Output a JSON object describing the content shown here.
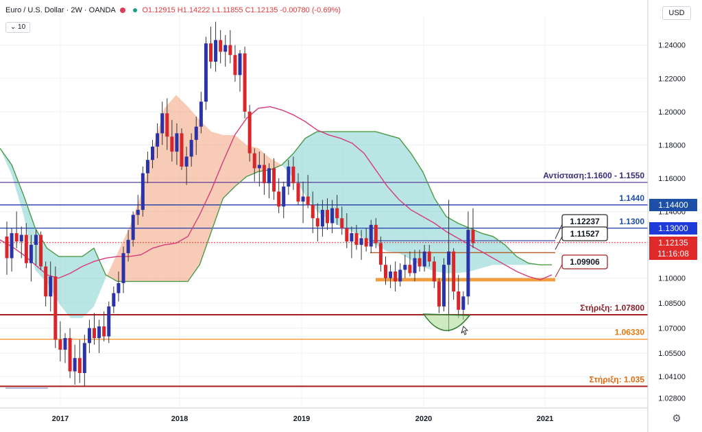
{
  "header": {
    "symbol": "Euro / U.S. Dollar · 2W · OANDA",
    "ohlc": "O1.12915  H1.14222  L1.11855  C1.12135  -0.00780 (-0.69%)",
    "interval_box": "10",
    "currency": "USD",
    "settings_icon": "gear-icon"
  },
  "colors": {
    "up": "#2a33a8",
    "down": "#d8262b",
    "cloud_bull": "#7fcfd0",
    "cloud_bear": "#f0a07a",
    "span_a": "#4a9a45",
    "ma": "#d63a7a",
    "resistance": "#5b3e9a",
    "blue_level": "#1e3aa8",
    "support_red": "#a81e1e",
    "support_orange": "#f08c1e",
    "level_1_0990": "#f08c1e"
  },
  "price_tags": [
    {
      "label": "1.14400",
      "value": 1.144,
      "bg": "#1e4fa8"
    },
    {
      "label": "1.13000",
      "value": 1.13,
      "bg": "#1e3ad8"
    },
    {
      "label": "1.12135",
      "value": 1.12135,
      "bg": "#e02a2a"
    },
    {
      "label": "11:16:08",
      "value": 1.1145,
      "bg": "#e02a2a"
    }
  ],
  "chart_data": {
    "type": "candlestick",
    "y_axis": {
      "ticks": [
        "1.24000",
        "1.22000",
        "1.20000",
        "1.18000",
        "1.16000",
        "1.14000",
        "1.12000",
        "1.10000",
        "1.08500",
        "1.07000",
        "1.05500",
        "1.04100",
        "1.02800"
      ],
      "range": [
        1.022,
        1.258
      ]
    },
    "x_axis": {
      "ticks": [
        "2017",
        "2018",
        "2019",
        "2020",
        "2021"
      ]
    },
    "levels": [
      {
        "label": "Αντίσταση:1.1600 - 1.1550",
        "value": 1.1575,
        "color": "#5b3e9a"
      },
      {
        "label": "1.1440",
        "value": 1.144,
        "color": "#1e4fa8"
      },
      {
        "label": "1.1300",
        "value": 1.13,
        "color": "#1e3aa8"
      },
      {
        "label": "Στήριξη: 1.07800",
        "value": 1.078,
        "color": "#a81e1e"
      },
      {
        "label": "1.06330",
        "value": 1.0633,
        "color": "#f08c1e"
      },
      {
        "label": "Στήριξη: 1.035",
        "value": 1.035,
        "color": "#a81e1e"
      }
    ],
    "callouts": [
      {
        "label": "1.12237",
        "value": 1.12237
      },
      {
        "label": "1.11527",
        "value": 1.11527
      },
      {
        "label": "1.09906",
        "value": 1.09906
      }
    ],
    "ohlc": [
      [
        1.125,
        1.134,
        1.102,
        1.112
      ],
      [
        1.112,
        1.13,
        1.104,
        1.127
      ],
      [
        1.127,
        1.14,
        1.118,
        1.122
      ],
      [
        1.122,
        1.131,
        1.112,
        1.126
      ],
      [
        1.126,
        1.133,
        1.106,
        1.109
      ],
      [
        1.109,
        1.126,
        1.098,
        1.12
      ],
      [
        1.12,
        1.129,
        1.108,
        1.126
      ],
      [
        1.126,
        1.128,
        1.105,
        1.107
      ],
      [
        1.107,
        1.11,
        1.083,
        1.089
      ],
      [
        1.089,
        1.11,
        1.08,
        1.101
      ],
      [
        1.101,
        1.107,
        1.058,
        1.063
      ],
      [
        1.063,
        1.074,
        1.05,
        1.057
      ],
      [
        1.057,
        1.067,
        1.049,
        1.064
      ],
      [
        1.064,
        1.07,
        1.04,
        1.044
      ],
      [
        1.044,
        1.06,
        1.036,
        1.052
      ],
      [
        1.052,
        1.063,
        1.037,
        1.043
      ],
      [
        1.043,
        1.066,
        1.035,
        1.061
      ],
      [
        1.061,
        1.075,
        1.055,
        1.07
      ],
      [
        1.07,
        1.079,
        1.06,
        1.064
      ],
      [
        1.064,
        1.075,
        1.055,
        1.071
      ],
      [
        1.071,
        1.08,
        1.062,
        1.065
      ],
      [
        1.065,
        1.086,
        1.061,
        1.083
      ],
      [
        1.083,
        1.095,
        1.079,
        1.091
      ],
      [
        1.091,
        1.104,
        1.086,
        1.097
      ],
      [
        1.097,
        1.119,
        1.091,
        1.115
      ],
      [
        1.115,
        1.129,
        1.11,
        1.123
      ],
      [
        1.123,
        1.14,
        1.119,
        1.138
      ],
      [
        1.138,
        1.15,
        1.132,
        1.141
      ],
      [
        1.141,
        1.167,
        1.137,
        1.163
      ],
      [
        1.163,
        1.176,
        1.157,
        1.171
      ],
      [
        1.171,
        1.183,
        1.166,
        1.179
      ],
      [
        1.179,
        1.193,
        1.172,
        1.187
      ],
      [
        1.187,
        1.206,
        1.18,
        1.199
      ],
      [
        1.199,
        1.208,
        1.177,
        1.185
      ],
      [
        1.185,
        1.195,
        1.17,
        1.176
      ],
      [
        1.176,
        1.193,
        1.168,
        1.187
      ],
      [
        1.187,
        1.19,
        1.165,
        1.167
      ],
      [
        1.167,
        1.179,
        1.156,
        1.173
      ],
      [
        1.173,
        1.187,
        1.167,
        1.183
      ],
      [
        1.183,
        1.197,
        1.174,
        1.191
      ],
      [
        1.191,
        1.212,
        1.187,
        1.206
      ],
      [
        1.206,
        1.245,
        1.201,
        1.241
      ],
      [
        1.241,
        1.251,
        1.226,
        1.23
      ],
      [
        1.23,
        1.254,
        1.224,
        1.243
      ],
      [
        1.243,
        1.249,
        1.229,
        1.236
      ],
      [
        1.236,
        1.246,
        1.227,
        1.24
      ],
      [
        1.24,
        1.249,
        1.229,
        1.234
      ],
      [
        1.234,
        1.24,
        1.218,
        1.222
      ],
      [
        1.222,
        1.237,
        1.212,
        1.235
      ],
      [
        1.235,
        1.239,
        1.196,
        1.2
      ],
      [
        1.2,
        1.204,
        1.17,
        1.175
      ],
      [
        1.175,
        1.178,
        1.158,
        1.166
      ],
      [
        1.166,
        1.176,
        1.155,
        1.168
      ],
      [
        1.168,
        1.175,
        1.15,
        1.157
      ],
      [
        1.157,
        1.169,
        1.148,
        1.166
      ],
      [
        1.166,
        1.172,
        1.147,
        1.152
      ],
      [
        1.152,
        1.16,
        1.139,
        1.143
      ],
      [
        1.143,
        1.158,
        1.136,
        1.155
      ],
      [
        1.155,
        1.171,
        1.15,
        1.167
      ],
      [
        1.167,
        1.173,
        1.153,
        1.157
      ],
      [
        1.157,
        1.163,
        1.144,
        1.146
      ],
      [
        1.146,
        1.158,
        1.133,
        1.149
      ],
      [
        1.149,
        1.162,
        1.142,
        1.144
      ],
      [
        1.144,
        1.152,
        1.127,
        1.136
      ],
      [
        1.136,
        1.145,
        1.122,
        1.131
      ],
      [
        1.131,
        1.147,
        1.125,
        1.141
      ],
      [
        1.141,
        1.148,
        1.129,
        1.133
      ],
      [
        1.133,
        1.147,
        1.127,
        1.142
      ],
      [
        1.142,
        1.15,
        1.132,
        1.136
      ],
      [
        1.136,
        1.143,
        1.126,
        1.13
      ],
      [
        1.13,
        1.139,
        1.118,
        1.122
      ],
      [
        1.122,
        1.131,
        1.112,
        1.127
      ],
      [
        1.127,
        1.132,
        1.117,
        1.12
      ],
      [
        1.12,
        1.129,
        1.111,
        1.124
      ],
      [
        1.124,
        1.13,
        1.116,
        1.119
      ],
      [
        1.119,
        1.135,
        1.115,
        1.132
      ],
      [
        1.132,
        1.136,
        1.118,
        1.121
      ],
      [
        1.121,
        1.125,
        1.104,
        1.108
      ],
      [
        1.108,
        1.113,
        1.096,
        1.1
      ],
      [
        1.1,
        1.108,
        1.094,
        1.104
      ],
      [
        1.104,
        1.11,
        1.092,
        1.098
      ],
      [
        1.098,
        1.109,
        1.095,
        1.105
      ],
      [
        1.105,
        1.114,
        1.1,
        1.108
      ],
      [
        1.108,
        1.116,
        1.101,
        1.103
      ],
      [
        1.103,
        1.117,
        1.098,
        1.112
      ],
      [
        1.112,
        1.117,
        1.104,
        1.107
      ],
      [
        1.107,
        1.12,
        1.104,
        1.116
      ],
      [
        1.116,
        1.12,
        1.107,
        1.11
      ],
      [
        1.11,
        1.113,
        1.094,
        1.098
      ],
      [
        1.098,
        1.1,
        1.079,
        1.083
      ],
      [
        1.083,
        1.112,
        1.08,
        1.108
      ],
      [
        1.108,
        1.147,
        1.068,
        1.116
      ],
      [
        1.116,
        1.118,
        1.087,
        1.092
      ],
      [
        1.092,
        1.102,
        1.076,
        1.081
      ],
      [
        1.081,
        1.092,
        1.075,
        1.089
      ],
      [
        1.089,
        1.14,
        1.084,
        1.129
      ],
      [
        1.129,
        1.142,
        1.118,
        1.121
      ]
    ],
    "ma": [
      1.123,
      1.119,
      1.114,
      1.108,
      1.102,
      1.1,
      1.103,
      1.107,
      1.11,
      1.112,
      1.113,
      1.113,
      1.114,
      1.118,
      1.12,
      1.121,
      1.125,
      1.138,
      1.153,
      1.17,
      1.186,
      1.196,
      1.202,
      1.203,
      1.201,
      1.198,
      1.194,
      1.189,
      1.186,
      1.184,
      1.181,
      1.175,
      1.165,
      1.155,
      1.147,
      1.141,
      1.137,
      1.133,
      1.128,
      1.124,
      1.12,
      1.116,
      1.112,
      1.108,
      1.104,
      1.101,
      1.099,
      1.102
    ],
    "span_a": [
      1.178,
      1.168,
      1.15,
      1.13,
      1.118,
      1.113,
      1.113,
      1.113,
      1.118,
      1.102,
      1.098,
      1.098,
      1.098,
      1.098,
      1.098,
      1.098,
      1.098,
      1.108,
      1.128,
      1.148,
      1.155,
      1.161,
      1.164,
      1.165,
      1.168,
      1.175,
      1.184,
      1.188,
      1.188,
      1.188,
      1.188,
      1.188,
      1.188,
      1.186,
      1.184,
      1.175,
      1.164,
      1.148,
      1.137,
      1.133,
      1.13,
      1.127,
      1.125,
      1.12,
      1.113,
      1.109,
      1.108,
      1.108
    ],
    "span_b": [
      1.178,
      1.162,
      1.138,
      1.105,
      1.097,
      1.085,
      1.076,
      1.076,
      1.083,
      1.1,
      1.115,
      1.13,
      1.15,
      1.177,
      1.202,
      1.21,
      1.203,
      1.195,
      1.188,
      1.186,
      1.186,
      1.18,
      1.178,
      1.172,
      1.168,
      1.16,
      1.15,
      1.14,
      1.135,
      1.131,
      1.128,
      1.124,
      1.12,
      1.116,
      1.115,
      1.111,
      1.107,
      1.104,
      1.103,
      1.103,
      1.104,
      1.106,
      1.108,
      1.108,
      1.108,
      1.108,
      1.108,
      1.108
    ]
  }
}
